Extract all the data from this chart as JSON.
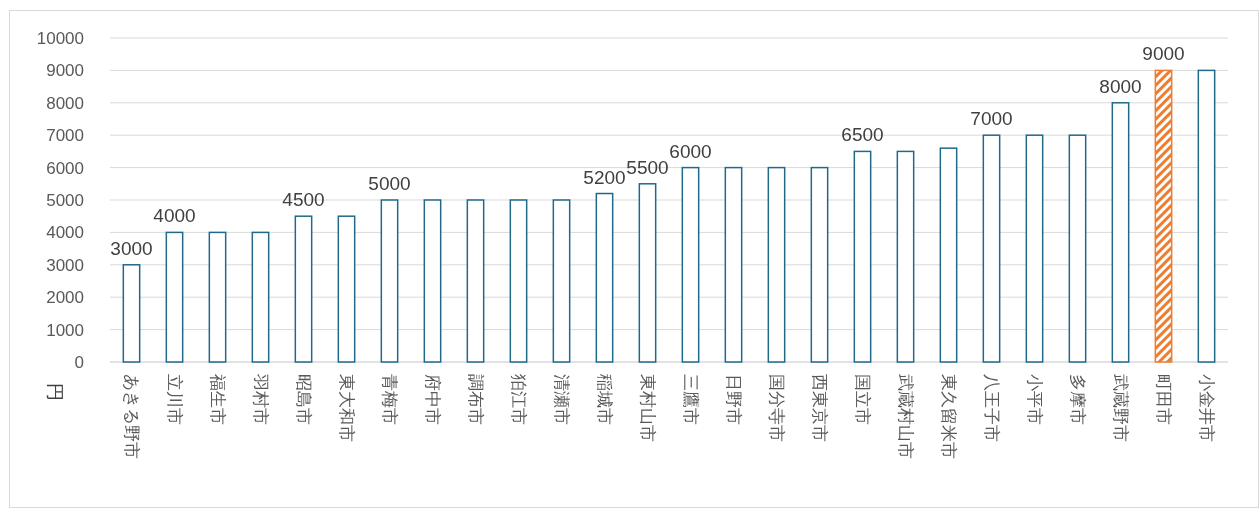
{
  "chart_data": {
    "type": "bar",
    "ylabel": "円",
    "categories": [
      "あきる野市",
      "立川市",
      "福生市",
      "羽村市",
      "昭島市",
      "東大和市",
      "青梅市",
      "府中市",
      "調布市",
      "狛江市",
      "清瀬市",
      "稲城市",
      "東村山市",
      "三鷹市",
      "日野市",
      "国分寺市",
      "西東京市",
      "国立市",
      "武蔵村山市",
      "東久留米市",
      "八王子市",
      "小平市",
      "多摩市",
      "武蔵野市",
      "町田市",
      "小金井市"
    ],
    "values": [
      3000,
      4000,
      4000,
      4000,
      4500,
      4500,
      5000,
      5000,
      5000,
      5000,
      5000,
      5200,
      5500,
      6000,
      6000,
      6000,
      6000,
      6500,
      6500,
      6600,
      7000,
      7000,
      7000,
      8000,
      9000,
      9000
    ],
    "colors": [
      "#1f6a8a",
      "#1f6a8a",
      "#1f6a8a",
      "#1f6a8a",
      "#1f6a8a",
      "#1f6a8a",
      "#1f6a8a",
      "#1f6a8a",
      "#1f6a8a",
      "#1f6a8a",
      "#1f6a8a",
      "#1f6a8a",
      "#1f6a8a",
      "#1f6a8a",
      "#1f6a8a",
      "#1f6a8a",
      "#1f6a8a",
      "#1f6a8a",
      "#1f6a8a",
      "#1f6a8a",
      "#1f6a8a",
      "#1f6a8a",
      "#1f6a8a",
      "#1f6a8a",
      "#ed7d31",
      "#1f6a8a"
    ],
    "value_labels": [
      "3000",
      "4000",
      null,
      null,
      "4500",
      null,
      "5000",
      null,
      null,
      null,
      null,
      "5200",
      "5500",
      "6000",
      null,
      null,
      null,
      "6500",
      null,
      null,
      "7000",
      null,
      null,
      "8000",
      "9000",
      null
    ],
    "ylim": [
      0,
      10000
    ],
    "yticks": [
      0,
      1000,
      2000,
      3000,
      4000,
      5000,
      6000,
      7000,
      8000,
      9000,
      10000
    ],
    "grid": true
  }
}
